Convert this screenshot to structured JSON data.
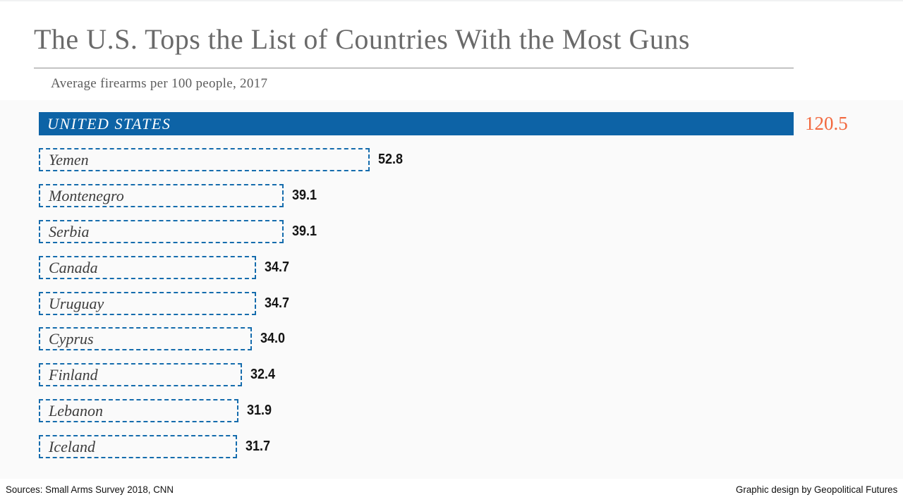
{
  "header": {
    "title": "The U.S. Tops the List of Countries With the Most Guns",
    "subtitle": "Average firearms per 100 people, 2017"
  },
  "chart_data": {
    "type": "bar",
    "orientation": "horizontal",
    "title": "The U.S. Tops the List of Countries With the Most Guns",
    "subtitle": "Average firearms per 100 people, 2017",
    "categories": [
      "UNITED STATES",
      "Yemen",
      "Montenegro",
      "Serbia",
      "Canada",
      "Uruguay",
      "Cyprus",
      "Finland",
      "Lebanon",
      "Iceland"
    ],
    "values": [
      120.5,
      52.8,
      39.1,
      39.1,
      34.7,
      34.7,
      34.0,
      32.4,
      31.9,
      31.7
    ],
    "value_format": "one-decimal",
    "xlim": [
      0,
      120.5
    ],
    "highlight_index": 0,
    "legend": "none",
    "grid": "off",
    "colors": {
      "bar_fill": "#0d63a6",
      "bar_dash_border": "#156cad",
      "highlight_value": "#f2683e",
      "value_text": "#141414",
      "label_text": "#3d3d3d",
      "label_text_on_fill": "#ffffff"
    }
  },
  "footer": {
    "sources": "Sources: Small Arms Survey 2018, CNN",
    "credit": "Graphic design by Geopolitical Futures"
  }
}
